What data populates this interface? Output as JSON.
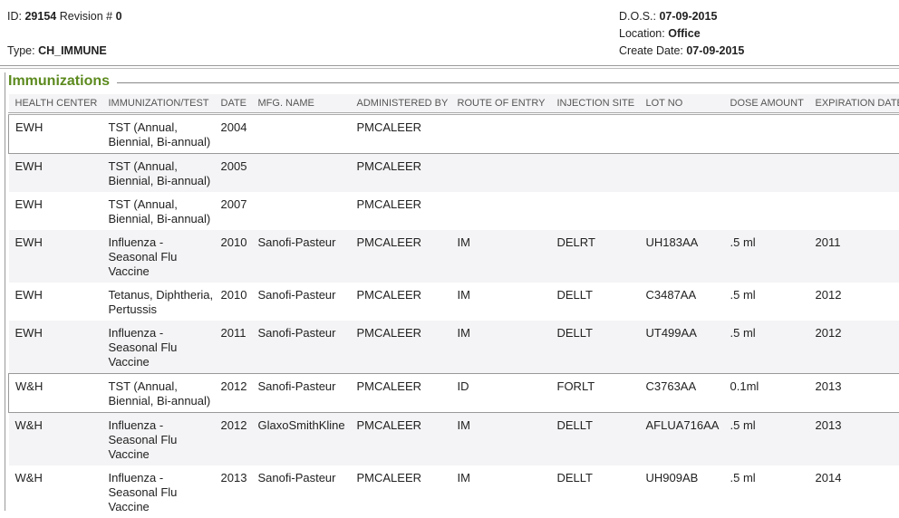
{
  "header": {
    "id_label": "ID:",
    "id_value": "29154",
    "revision_label": "Revision #",
    "revision_value": "0",
    "type_label": "Type:",
    "type_value": "CH_IMMUNE",
    "dos_label": "D.O.S.:",
    "dos_value": "07-09-2015",
    "location_label": "Location:",
    "location_value": "Office",
    "create_label": "Create Date:",
    "create_value": "07-09-2015"
  },
  "section": {
    "title": "Immunizations"
  },
  "table": {
    "columns": [
      "HEALTH CENTER",
      "IMMUNIZATION/TEST",
      "DATE",
      "MFG. NAME",
      "ADMINISTERED BY",
      "ROUTE OF ENTRY",
      "INJECTION SITE",
      "LOT NO",
      "DOSE AMOUNT",
      "EXPIRATION DATE"
    ],
    "rows": [
      [
        "EWH",
        "TST (Annual, Biennial, Bi-annual)",
        "2004",
        "",
        "PMCALEER",
        "",
        "",
        "",
        "",
        ""
      ],
      [
        "EWH",
        "TST (Annual, Biennial, Bi-annual)",
        "2005",
        "",
        "PMCALEER",
        "",
        "",
        "",
        "",
        ""
      ],
      [
        "EWH",
        "TST (Annual, Biennial, Bi-annual)",
        "2007",
        "",
        "PMCALEER",
        "",
        "",
        "",
        "",
        ""
      ],
      [
        "EWH",
        "Influenza - Seasonal Flu Vaccine",
        "2010",
        "Sanofi-Pasteur",
        "PMCALEER",
        "IM",
        "DELRT",
        "UH183AA",
        ".5 ml",
        "2011"
      ],
      [
        "EWH",
        "Tetanus, Diphtheria, Pertussis",
        "2010",
        "Sanofi-Pasteur",
        "PMCALEER",
        "IM",
        "DELLT",
        "C3487AA",
        ".5 ml",
        "2012"
      ],
      [
        "EWH",
        "Influenza - Seasonal Flu Vaccine",
        "2011",
        "Sanofi-Pasteur",
        "PMCALEER",
        "IM",
        "DELLT",
        "UT499AA",
        ".5 ml",
        "2012"
      ],
      [
        "W&H",
        "TST (Annual, Biennial, Bi-annual)",
        "2012",
        "Sanofi-Pasteur",
        "PMCALEER",
        "ID",
        "FORLT",
        "C3763AA",
        "0.1ml",
        "2013"
      ],
      [
        "W&H",
        "Influenza - Seasonal Flu Vaccine",
        "2012",
        "GlaxoSmithKline",
        "PMCALEER",
        "IM",
        "DELLT",
        "AFLUA716AA",
        ".5 ml",
        "2013"
      ],
      [
        "W&H",
        "Influenza - Seasonal Flu Vaccine",
        "2013",
        "Sanofi-Pasteur",
        "PMCALEER",
        "IM",
        "DELLT",
        "UH909AB",
        ".5 ml",
        "2014"
      ]
    ],
    "bordered_rows": [
      0,
      6
    ]
  },
  "colors": {
    "title": "#5c8a1e",
    "alt_row": "#f4f4f6"
  }
}
